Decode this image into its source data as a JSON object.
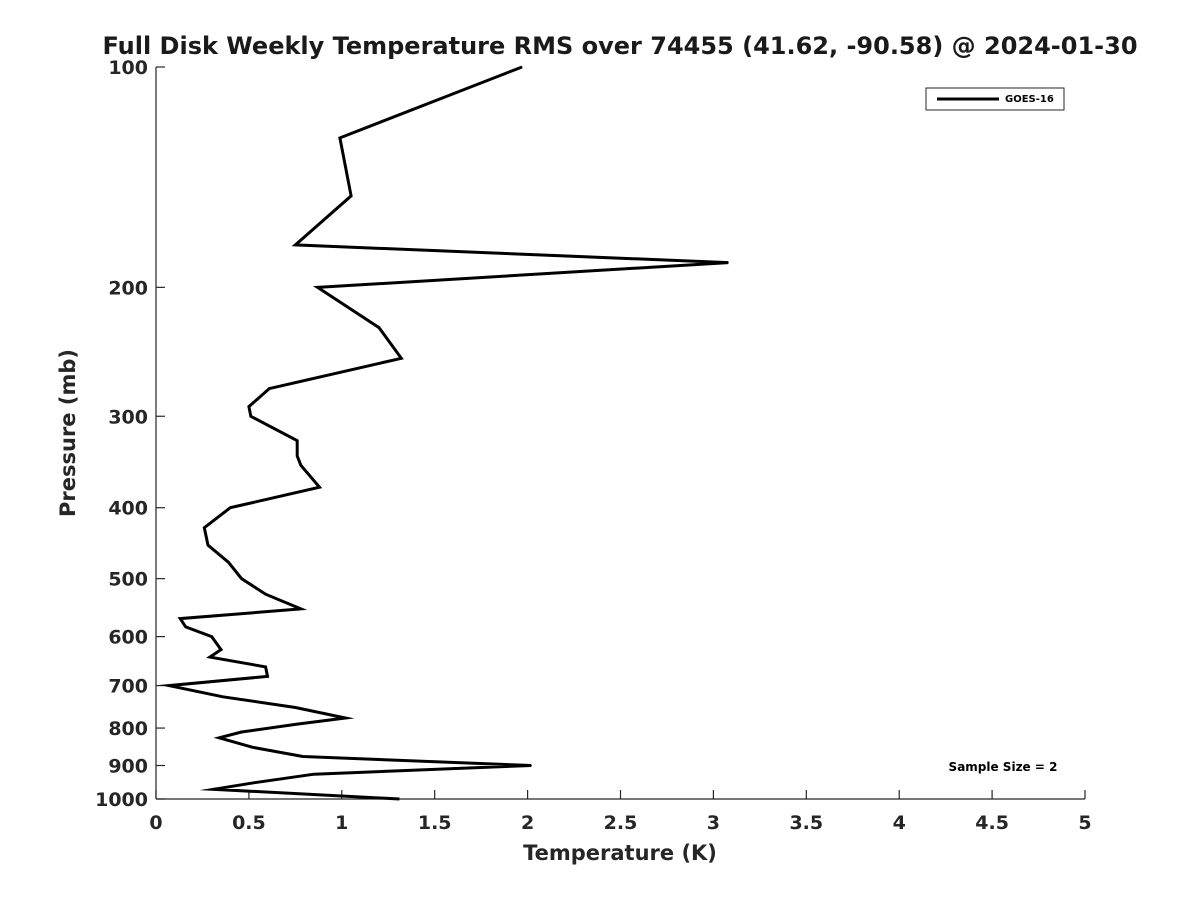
{
  "chart_data": {
    "type": "line",
    "title": "Full Disk Weekly Temperature RMS over 74455 (41.62, -90.58) @ 2024-01-30",
    "xlabel": "Temperature (K)",
    "ylabel": "Pressure (mb)",
    "xlim": [
      0,
      5
    ],
    "ylim": [
      100,
      1000
    ],
    "y_scale": "log",
    "y_reversed": true,
    "x_ticks": [
      "0",
      "0.5",
      "1",
      "1.5",
      "2",
      "2.5",
      "3",
      "3.5",
      "4",
      "4.5",
      "5"
    ],
    "y_ticks": [
      "100",
      "200",
      "300",
      "400",
      "500",
      "600",
      "700",
      "800",
      "900",
      "1000"
    ],
    "grid": false,
    "legend": {
      "position": "top-right",
      "entries": [
        "GOES-16"
      ]
    },
    "annotation": "Sample Size = 2",
    "series": [
      {
        "name": "GOES-16",
        "color": "#000000",
        "points": [
          [
            1.97,
            100
          ],
          [
            0.99,
            125
          ],
          [
            1.05,
            150
          ],
          [
            0.75,
            175
          ],
          [
            3.08,
            185
          ],
          [
            0.87,
            200
          ],
          [
            1.2,
            227
          ],
          [
            1.32,
            250
          ],
          [
            0.61,
            275
          ],
          [
            0.5,
            291
          ],
          [
            0.51,
            300
          ],
          [
            0.76,
            324
          ],
          [
            0.76,
            340
          ],
          [
            0.78,
            350
          ],
          [
            0.88,
            375
          ],
          [
            0.4,
            400
          ],
          [
            0.26,
            426
          ],
          [
            0.28,
            450
          ],
          [
            0.39,
            475
          ],
          [
            0.46,
            500
          ],
          [
            0.59,
            525
          ],
          [
            0.78,
            550
          ],
          [
            0.13,
            567
          ],
          [
            0.16,
            582
          ],
          [
            0.3,
            600
          ],
          [
            0.35,
            625
          ],
          [
            0.29,
            640
          ],
          [
            0.59,
            660
          ],
          [
            0.6,
            680
          ],
          [
            0.07,
            700
          ],
          [
            0.36,
            725
          ],
          [
            0.75,
            750
          ],
          [
            1.02,
            775
          ],
          [
            0.76,
            790
          ],
          [
            0.46,
            810
          ],
          [
            0.34,
            825
          ],
          [
            0.52,
            850
          ],
          [
            0.79,
            875
          ],
          [
            2.02,
            900
          ],
          [
            0.85,
            925
          ],
          [
            0.53,
            950
          ],
          [
            0.31,
            970
          ],
          [
            1.31,
            1000
          ]
        ]
      }
    ]
  }
}
